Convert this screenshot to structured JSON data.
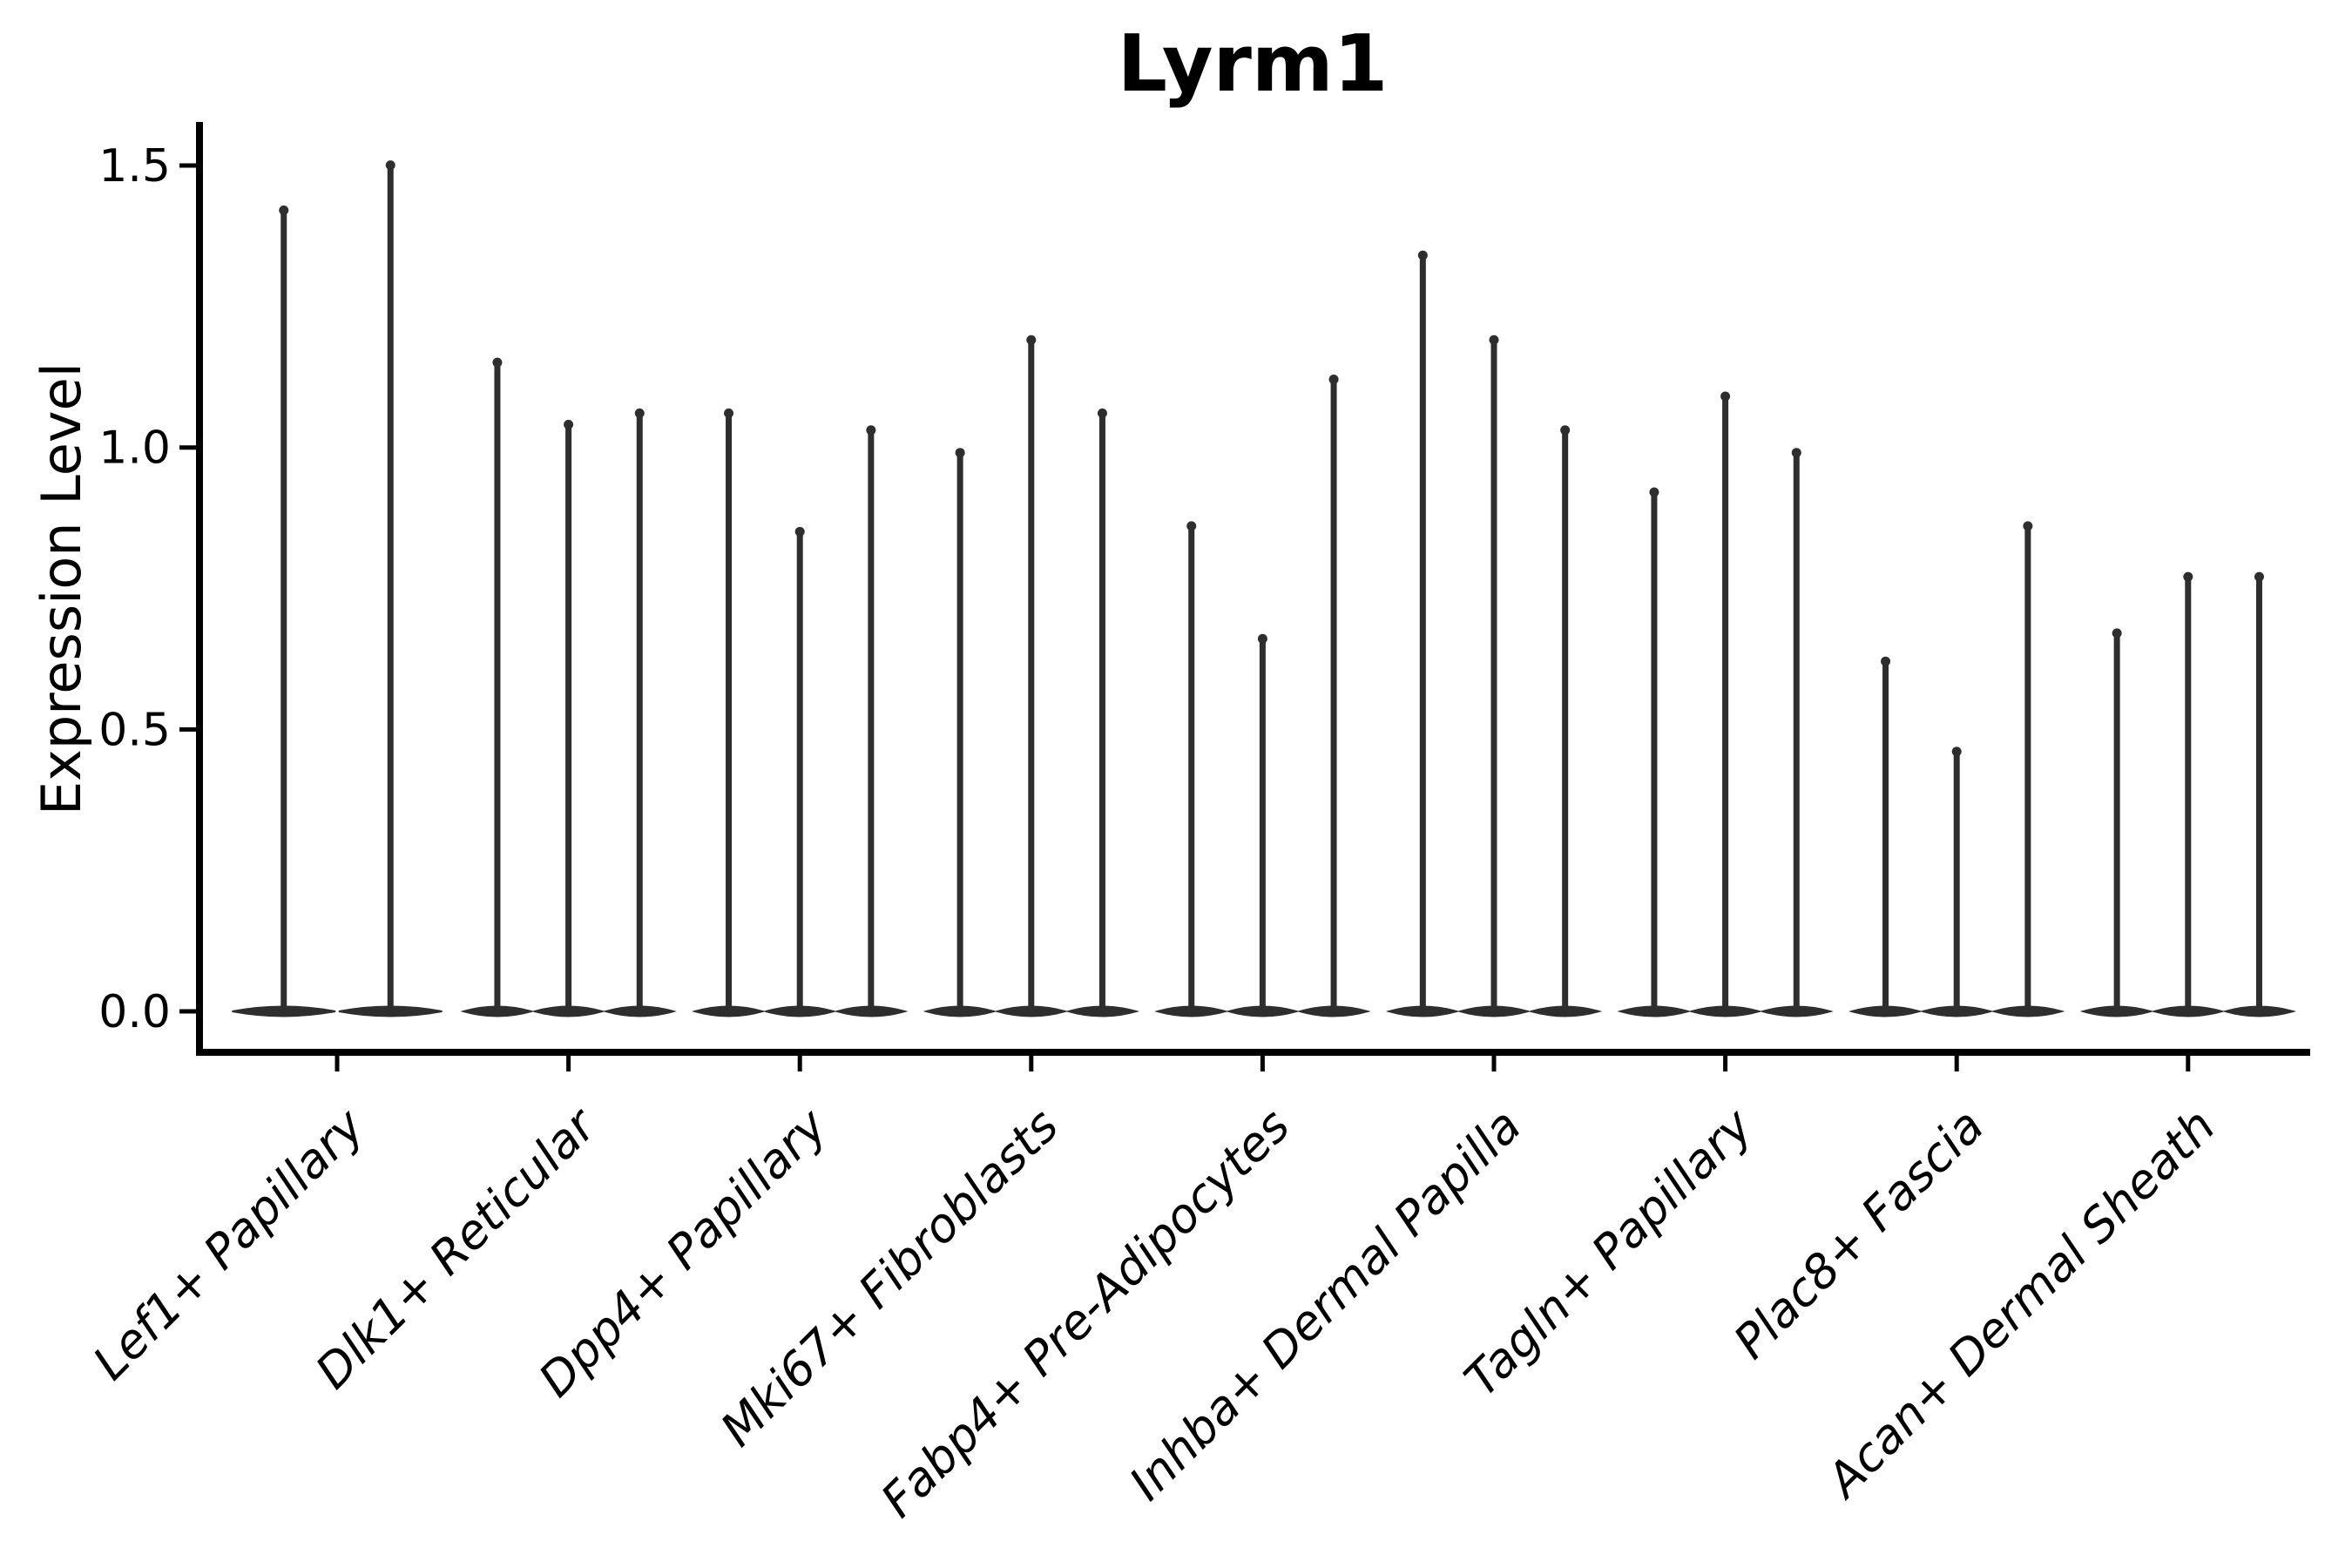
{
  "chart_data": {
    "type": "violin",
    "title": "Lyrm1",
    "xlabel": "",
    "ylabel": "Expression Level",
    "yticks": [
      0.0,
      0.5,
      1.0,
      1.5
    ],
    "ytick_labels": [
      "0.0",
      "0.5",
      "1.0",
      "1.5"
    ],
    "ylim": [
      -0.07,
      1.58
    ],
    "grid": false,
    "legend": "none",
    "xtick_rotation": 45,
    "categories": [
      "Lef1+ Papillary",
      "Dlk1+ Reticular",
      "Dpp4+ Papillary",
      "Mki67+ Fibroblasts",
      "Fabp4+ Pre-Adipocytes",
      "Inhba+ Dermal Papilla",
      "Tagln+ Papillary",
      "Plac8+ Fascia",
      "Acan+ Dermal Sheath"
    ],
    "groups": [
      {
        "category": "Lef1+ Papillary",
        "violin_min": 0.0,
        "violin_peaks": [
          1.43,
          1.51
        ]
      },
      {
        "category": "Dlk1+ Reticular",
        "violin_min": 0.0,
        "violin_peaks": [
          1.16,
          1.05,
          1.07
        ]
      },
      {
        "category": "Dpp4+ Papillary",
        "violin_min": 0.0,
        "violin_peaks": [
          1.07,
          0.86,
          1.04
        ]
      },
      {
        "category": "Mki67+ Fibroblasts",
        "violin_min": 0.0,
        "violin_peaks": [
          1.0,
          1.2,
          1.07
        ]
      },
      {
        "category": "Fabp4+ Pre-Adipocytes",
        "violin_min": 0.0,
        "violin_peaks": [
          0.87,
          0.67,
          1.13
        ]
      },
      {
        "category": "Inhba+ Dermal Papilla",
        "violin_min": 0.0,
        "violin_peaks": [
          1.35,
          1.2,
          1.04
        ]
      },
      {
        "category": "Tagln+ Papillary",
        "violin_min": 0.0,
        "violin_peaks": [
          0.93,
          1.1,
          1.0
        ]
      },
      {
        "category": "Plac8+ Fascia",
        "violin_min": 0.0,
        "violin_peaks": [
          0.63,
          0.47,
          0.87
        ]
      },
      {
        "category": "Acan+ Dermal Sheath",
        "violin_min": 0.0,
        "violin_peaks": [
          0.68,
          0.78,
          0.78
        ]
      }
    ],
    "colors": {
      "violin": "#2e2e2e",
      "axis": "#000000",
      "text": "#000000",
      "background": "#ffffff"
    }
  }
}
